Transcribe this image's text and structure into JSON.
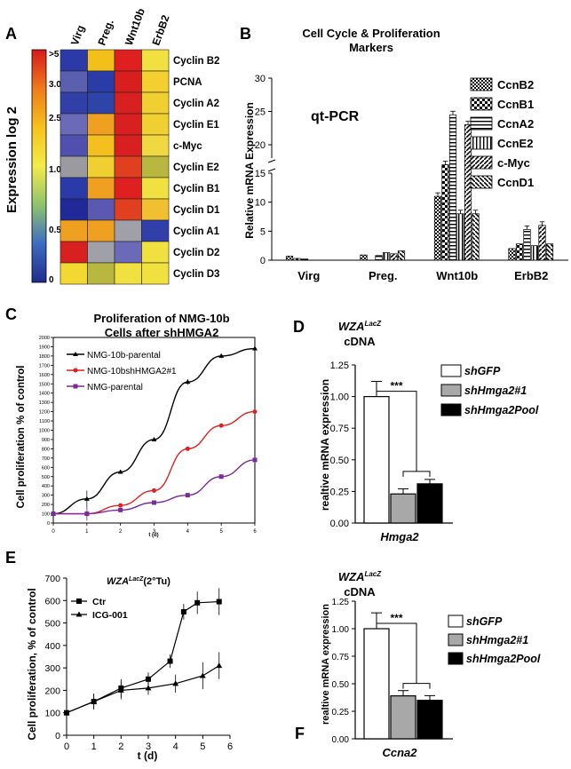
{
  "panelA": {
    "letter": "A",
    "cbar_label": "Expression log 2",
    "cbar_ticks": [
      ">5",
      "3.0",
      "2.5",
      "1.0",
      "0.5",
      "0"
    ],
    "cbar_colors": [
      "#d7191c",
      "#f07a1a",
      "#f6c21c",
      "#f3ec4a",
      "#8fc36b",
      "#3d6cc3",
      "#1f2b8c"
    ],
    "columns": [
      "Virg",
      "Preg.",
      "Wnt10b",
      "ErbB2"
    ],
    "rows": [
      "Cyclin B2",
      "PCNA",
      "Cyclin A2",
      "Cyclin E1",
      "c-Myc",
      "Cyclin E2",
      "Cyclin B1",
      "Cyclin D1",
      "Cyclin A1",
      "Cyclin D2",
      "Cyclin D3"
    ],
    "cells": [
      [
        "#2b3aa8",
        "#f3c01a",
        "#e02020",
        "#f0e040"
      ],
      [
        "#5a5fb0",
        "#2a3ca8",
        "#d81e1e",
        "#f3d030"
      ],
      [
        "#3040a8",
        "#2e44a8",
        "#d82020",
        "#f0d030"
      ],
      [
        "#6a6ab8",
        "#f0a020",
        "#d82020",
        "#f0d030"
      ],
      [
        "#5050b0",
        "#f3c020",
        "#d82020",
        "#f0d840"
      ],
      [
        "#9a9aa0",
        "#f0d030",
        "#e04020",
        "#b8b840"
      ],
      [
        "#2a3aa8",
        "#f0a020",
        "#e02020",
        "#f0e040"
      ],
      [
        "#1f2a98",
        "#5a58b0",
        "#e04020",
        "#f0c030"
      ],
      [
        "#f0a020",
        "#f0a020",
        "#a0a0a8",
        "#3040a8"
      ],
      [
        "#d82020",
        "#a0a0a8",
        "#6a6ab8",
        "#f0e040"
      ],
      [
        "#f3d830",
        "#b8b840",
        "#f0e040",
        "#f0e040"
      ]
    ]
  },
  "panelB": {
    "letter": "B",
    "title": "Cell Cycle & Proliferation Markers",
    "subtitle": "qt-PCR",
    "ylabel": "Relative mRNA Expression",
    "legend": [
      "CcnB2",
      "CcnB1",
      "CcnA2",
      "CcnE2",
      "c-Myc",
      "CcnD1"
    ],
    "chart_data": {
      "type": "bar",
      "categories": [
        "Virg",
        "Preg.",
        "Wnt10b",
        "ErbB2"
      ],
      "ylim": [
        0,
        30
      ],
      "yticks": [
        0,
        5,
        10,
        15,
        20,
        25,
        30
      ],
      "series": [
        {
          "name": "CcnB2",
          "values": [
            0.7,
            0.9,
            11,
            2
          ]
        },
        {
          "name": "CcnB1",
          "values": [
            0.3,
            0,
            17,
            2.8
          ]
        },
        {
          "name": "CcnA2",
          "values": [
            0.2,
            0.8,
            24.5,
            5.3
          ]
        },
        {
          "name": "CcnE2",
          "values": [
            0,
            1.3,
            8,
            2.5
          ]
        },
        {
          "name": "c-Myc",
          "values": [
            0,
            1.1,
            23,
            6
          ]
        },
        {
          "name": "CcnD1",
          "values": [
            0,
            1.6,
            8,
            2.8
          ]
        }
      ]
    }
  },
  "panelC": {
    "letter": "C",
    "title_line1": "Proliferation of NMG-10b",
    "title_line2": "Cells after shHMGA2",
    "ylabel": "Cell proliferation % of control",
    "xlabel": "t (d)",
    "chart_data": {
      "type": "line",
      "x": [
        0,
        1,
        2,
        3,
        4,
        5,
        6
      ],
      "ylim": [
        0,
        2000
      ],
      "yticks": [
        0,
        100,
        200,
        300,
        400,
        500,
        600,
        700,
        800,
        900,
        1000,
        1100,
        1200,
        1300,
        1400,
        1500,
        1600,
        1700,
        1800,
        1900,
        2000
      ],
      "series": [
        {
          "name": "NMG-10b-parental",
          "color": "#000000",
          "values": [
            100,
            260,
            550,
            900,
            1520,
            1800,
            1880
          ]
        },
        {
          "name": "NMG-10bshHMGA2#1",
          "color": "#e02020",
          "values": [
            100,
            100,
            190,
            350,
            800,
            1050,
            1200
          ]
        },
        {
          "name": "NMG-parental",
          "color": "#7a2a9a",
          "values": [
            100,
            100,
            140,
            220,
            300,
            500,
            680
          ]
        }
      ]
    }
  },
  "panelD": {
    "letter": "D",
    "title_main": "WZA",
    "title_sup": "LacZ",
    "title_line2": "cDNA",
    "ylabel": "realtive mRNA expression",
    "xlabel": "Hmga2",
    "sig": "***",
    "legend": [
      "shGFP",
      "shHmga2#1",
      "shHmga2Pool"
    ],
    "chart_data": {
      "type": "bar",
      "categories": [
        "Hmga2"
      ],
      "ylim": [
        0,
        1.25
      ],
      "yticks": [
        "0.00",
        "0.25",
        "0.50",
        "0.75",
        "1.00",
        "1.25"
      ],
      "series": [
        {
          "name": "shGFP",
          "values": [
            1.0
          ]
        },
        {
          "name": "shHmga2#1",
          "values": [
            0.23
          ]
        },
        {
          "name": "shHmga2Pool",
          "values": [
            0.31
          ]
        }
      ]
    }
  },
  "panelE": {
    "letter": "E",
    "inner_main": "WZA",
    "inner_sup": "LacZ",
    "inner_tail": "(2°Tu)",
    "ylabel": "Cell proliferation, % of control",
    "xlabel": "t (d)",
    "chart_data": {
      "type": "line",
      "ylim": [
        0,
        700
      ],
      "yticks": [
        0,
        100,
        200,
        300,
        400,
        500,
        600,
        700
      ],
      "xticks": [
        0,
        1,
        2,
        3,
        4,
        5,
        6
      ],
      "series": [
        {
          "name": "Ctr",
          "x": [
            0,
            1,
            2,
            3,
            3.8,
            4.3,
            4.8,
            5.6
          ],
          "values": [
            100,
            150,
            210,
            250,
            330,
            550,
            590,
            595
          ]
        },
        {
          "name": "ICG-001",
          "x": [
            0,
            1,
            2,
            3,
            4,
            5,
            5.6
          ],
          "values": [
            100,
            150,
            200,
            210,
            230,
            265,
            310
          ]
        }
      ]
    }
  },
  "panelF": {
    "letter": "F",
    "title_main": "WZA",
    "title_sup": "LacZ",
    "title_line2": "cDNA",
    "ylabel": "realtive mRNA expression",
    "xlabel": "Ccna2",
    "sig": "***",
    "legend": [
      "shGFP",
      "shHmga2#1",
      "shHmga2Pool"
    ],
    "chart_data": {
      "type": "bar",
      "categories": [
        "Ccna2"
      ],
      "ylim": [
        0,
        1.25
      ],
      "yticks": [
        "0.00",
        "0.25",
        "0.50",
        "0.75",
        "1.00",
        "1.25"
      ],
      "series": [
        {
          "name": "shGFP",
          "values": [
            1.0
          ]
        },
        {
          "name": "shHmga2#1",
          "values": [
            0.39
          ]
        },
        {
          "name": "shHmga2Pool",
          "values": [
            0.35
          ]
        }
      ]
    }
  }
}
